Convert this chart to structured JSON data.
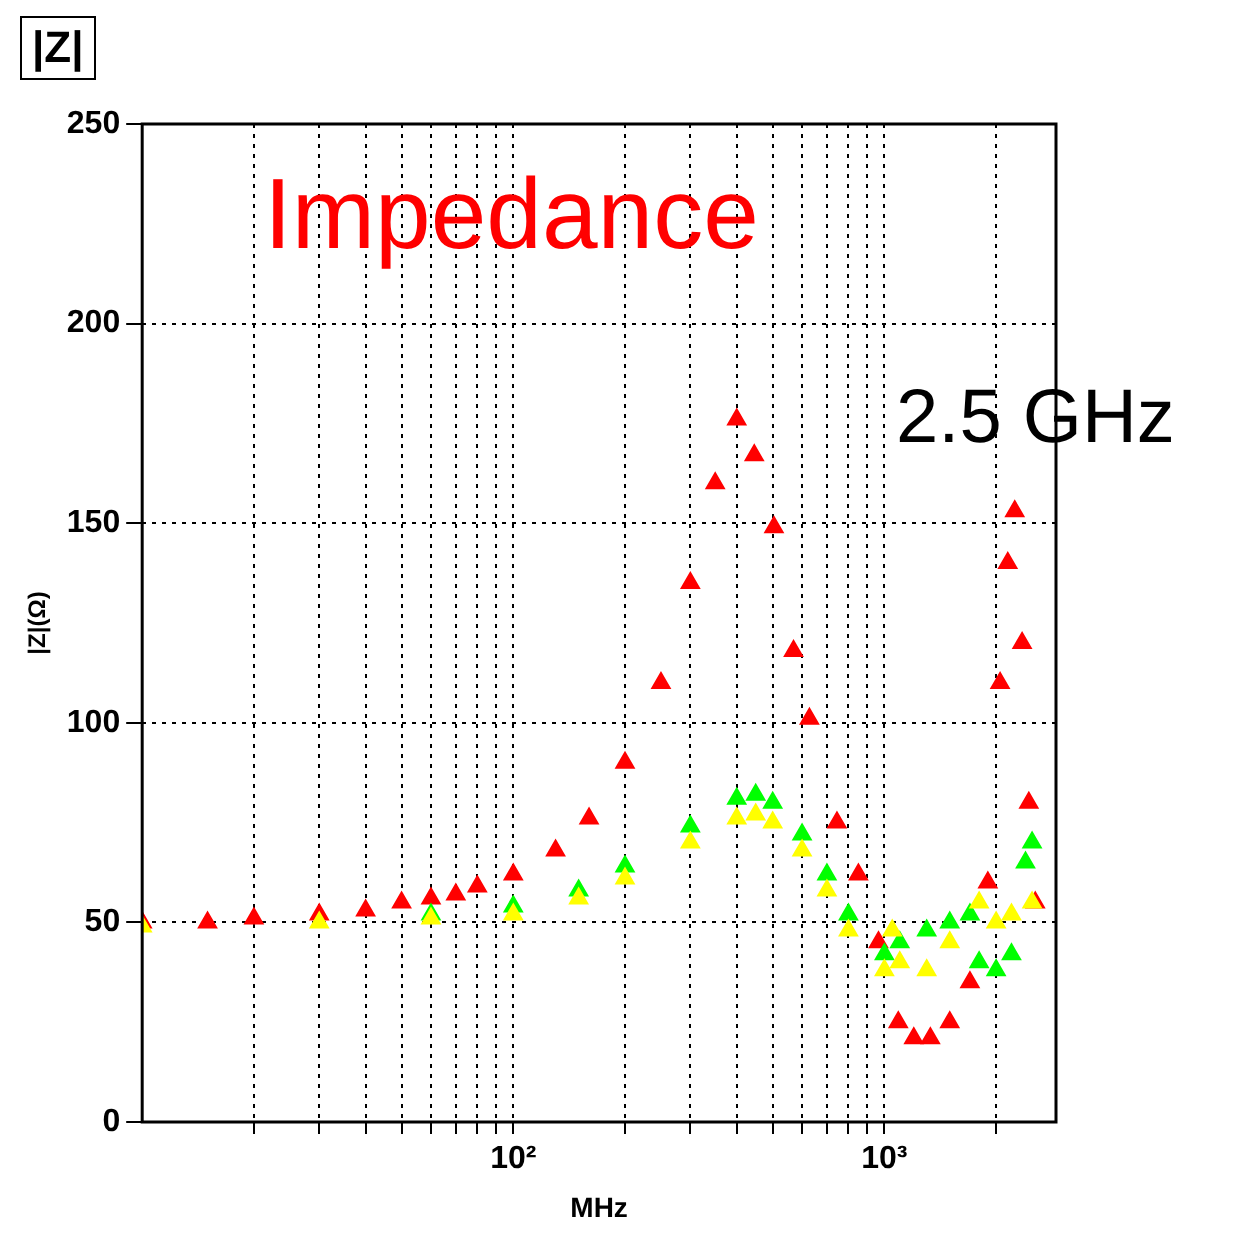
{
  "chart_data": {
    "type": "scatter",
    "title": "|Z|",
    "xlabel": "MHz",
    "ylabel": "|Z|(Ω)",
    "annotations": [
      "Impedance",
      "2.5 GHz"
    ],
    "log": "x",
    "grid": true,
    "marker": "triangle",
    "legend": false,
    "xlim": [
      10,
      2900
    ],
    "ylim": [
      0,
      250
    ],
    "xticks": [
      {
        "value": 20,
        "label": null
      },
      {
        "value": 30,
        "label": null
      },
      {
        "value": 40,
        "label": null
      },
      {
        "value": 50,
        "label": null
      },
      {
        "value": 60,
        "label": null
      },
      {
        "value": 70,
        "label": null
      },
      {
        "value": 80,
        "label": null
      },
      {
        "value": 90,
        "label": null
      },
      {
        "value": 100,
        "label": "10²"
      },
      {
        "value": 200,
        "label": null
      },
      {
        "value": 300,
        "label": null
      },
      {
        "value": 400,
        "label": null
      },
      {
        "value": 500,
        "label": null
      },
      {
        "value": 600,
        "label": null
      },
      {
        "value": 700,
        "label": null
      },
      {
        "value": 800,
        "label": null
      },
      {
        "value": 900,
        "label": null
      },
      {
        "value": 1000,
        "label": "10³"
      },
      {
        "value": 2000,
        "label": null
      }
    ],
    "yticks": [
      0,
      50,
      100,
      150,
      200,
      250
    ],
    "series": [
      {
        "color": "#ff0000",
        "x": [
          10,
          15,
          20,
          30,
          40,
          50,
          60,
          70,
          80,
          100,
          130,
          160,
          200,
          250,
          300,
          350,
          400,
          446,
          504,
          569,
          628,
          745,
          851,
          964,
          1090,
          1200,
          1330,
          1500,
          1700,
          1900,
          2050,
          2150,
          2245,
          2350,
          2450,
          2550
        ],
        "values": [
          50,
          50,
          51,
          52,
          53,
          55,
          56,
          57,
          59,
          62,
          68,
          76,
          90,
          110,
          135,
          160,
          176,
          167,
          149,
          118,
          101,
          75,
          62,
          45,
          25,
          21,
          21,
          25,
          35,
          60,
          110,
          140,
          153,
          120,
          80,
          55
        ]
      },
      {
        "color": "#00ff00",
        "x": [
          60,
          100,
          150,
          200,
          300,
          400,
          450,
          500,
          600,
          700,
          800,
          1000,
          1100,
          1300,
          1500,
          1700,
          1800,
          2000,
          2200,
          2400,
          2500
        ],
        "values": [
          52,
          54,
          58,
          64,
          74,
          81,
          82,
          80,
          72,
          62,
          52,
          42,
          45,
          48,
          50,
          52,
          40,
          38,
          42,
          65,
          70
        ]
      },
      {
        "color": "#ffff00",
        "x": [
          10,
          30,
          60,
          100,
          150,
          200,
          300,
          400,
          450,
          500,
          600,
          700,
          800,
          1000,
          1050,
          1100,
          1300,
          1500,
          1800,
          2000,
          2200,
          2500
        ],
        "values": [
          49,
          50,
          51,
          52,
          56,
          61,
          70,
          76,
          77,
          75,
          68,
          58,
          48,
          38,
          48,
          40,
          38,
          45,
          55,
          50,
          52,
          55
        ]
      }
    ]
  }
}
